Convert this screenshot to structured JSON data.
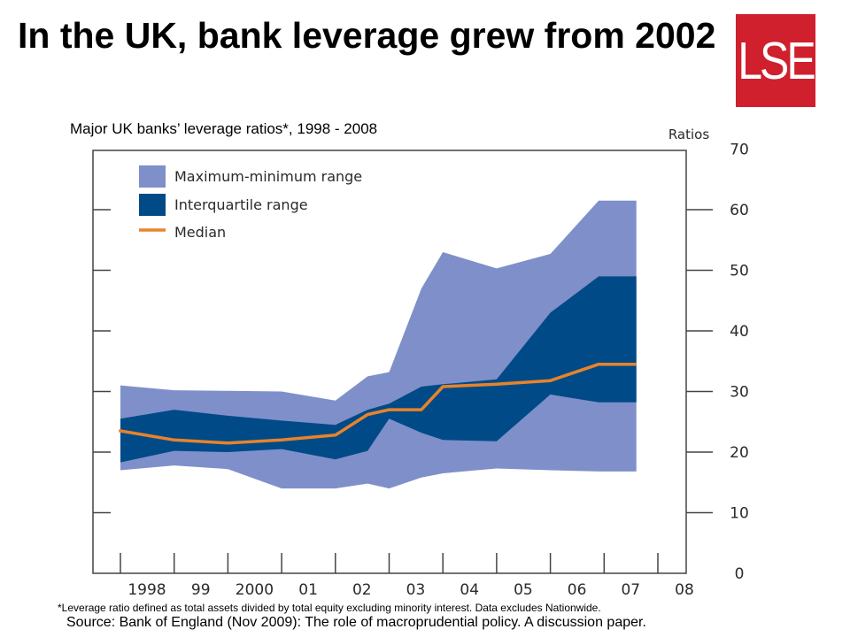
{
  "title": "In the UK, bank leverage grew from 2002",
  "logo_text": "LSE",
  "subtitle": "Major UK banks’ leverage ratios*, 1998 - 2008",
  "footnote": "*Leverage ratio defined as total assets divided by total equity excluding minority interest. Data excludes Nationwide.",
  "source": "Source: Bank of England (Nov 2009): The role of macroprudential policy. A discussion paper.",
  "colors": {
    "range": "#7f8fca",
    "interquartile": "#004b87",
    "median": "#e8832a",
    "brand": "#d01f2d"
  },
  "chart_data": {
    "type": "area",
    "ylabel": "Ratios",
    "ylim": [
      0,
      70
    ],
    "yticks": [
      0,
      10,
      20,
      30,
      40,
      50,
      60,
      70
    ],
    "xticks": [
      "1998",
      "99",
      "2000",
      "01",
      "02",
      "03",
      "04",
      "05",
      "06",
      "07",
      "08"
    ],
    "x": [
      1998,
      1999,
      2000,
      2001,
      2002,
      2002.6,
      2003,
      2003.6,
      2004,
      2005,
      2006,
      2006.9,
      2007.3,
      2007.6
    ],
    "grid": false,
    "legend_position": "top-left",
    "legend": [
      "Maximum-minimum range",
      "Interquartile range",
      "Median"
    ],
    "series": [
      {
        "name": "Maximum-minimum range",
        "upper": [
          31,
          30.2,
          30.1,
          30,
          28.5,
          32.5,
          33.2,
          47,
          53,
          50.3,
          52.7,
          61.5,
          61.5,
          61.5
        ],
        "lower": [
          17,
          17.8,
          17.2,
          14,
          14,
          14.8,
          14,
          15.8,
          16.5,
          17.3,
          17,
          16.8,
          16.8,
          16.8
        ]
      },
      {
        "name": "Interquartile range",
        "upper": [
          25.5,
          27,
          26,
          25.2,
          24.5,
          27,
          28,
          30.8,
          31.2,
          32,
          43,
          49,
          49,
          49
        ],
        "lower": [
          18.3,
          20.2,
          20,
          20.5,
          18.8,
          20.2,
          25.5,
          23.2,
          22,
          21.8,
          29.5,
          28.2,
          28.2,
          28.2
        ]
      },
      {
        "name": "Median",
        "values": [
          23.5,
          22,
          21.5,
          22,
          22.8,
          26.2,
          27,
          27,
          30.8,
          31.2,
          31.8,
          34.5,
          34.5,
          34.5
        ]
      }
    ]
  }
}
